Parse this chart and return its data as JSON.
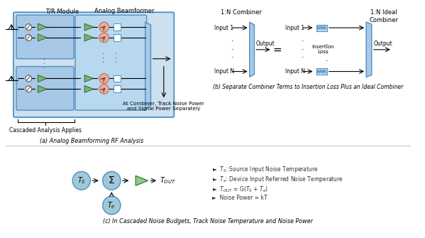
{
  "bg_color": "#ffffff",
  "light_blue": "#cce0f0",
  "medium_blue": "#a8c8e8",
  "dark_blue": "#5090c0",
  "green_tri": "#70b870",
  "salmon": "#f0a898",
  "teal_circle": "#a0c8d8",
  "panel_a_label": "(a) Analog Beamforming RF Analysis",
  "panel_b_label": "(b) Separate Combiner Terms to Insertion Loss Plus an Ideal Combiner",
  "panel_c_label": "(c) In Cascaded Noise Budgets, Track Noise Temperature and Noise Power",
  "tr_module_label": "T/R Module",
  "analog_bf_label": "Analog Beamformer",
  "cascaded_label": "Cascaded Analysis Applies",
  "combiner_text": "At Combiner, Track Noise Power\nand Signal Power Separately",
  "one_n_combiner": "1:N Combiner",
  "one_n_ideal": "1:N Ideal\nCombiner",
  "input1": "Input 1",
  "inputN": "Input N",
  "output": "Output",
  "insertion_loss": "Insertion\nLoss",
  "bullet1": "►  $T_S$: Source Input Noise Temperature",
  "bullet2": "►  $T_e$: Device Input Referred Noise Temperature",
  "bullet3": "►  $T_{OUT}$ = G($T_S$ + $T_e$)",
  "bullet4": "►  Noise Power = kT"
}
